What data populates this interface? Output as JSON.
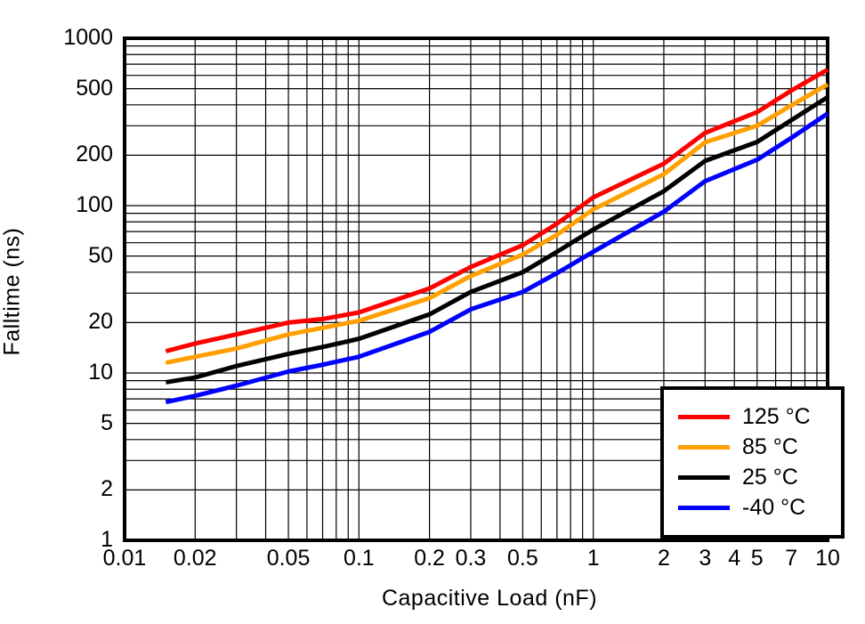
{
  "chart_data": {
    "type": "line",
    "title": "",
    "xlabel": "Capacitive Load (nF)",
    "ylabel": "Falltime (ns)",
    "x_scale": "log",
    "y_scale": "log",
    "xlim": [
      0.01,
      10
    ],
    "ylim": [
      1,
      1000
    ],
    "grid": "minor log gridlines on, both axes, black",
    "legend_position": "lower right",
    "x_ticks": [
      {
        "value": 0.01,
        "label": "0.01"
      },
      {
        "value": 0.02,
        "label": "0.02"
      },
      {
        "value": 0.05,
        "label": "0.05"
      },
      {
        "value": 0.1,
        "label": "0.1"
      },
      {
        "value": 0.2,
        "label": "0.2"
      },
      {
        "value": 0.3,
        "label": "0.3"
      },
      {
        "value": 0.5,
        "label": "0.5"
      },
      {
        "value": 1,
        "label": "1"
      },
      {
        "value": 2,
        "label": "2"
      },
      {
        "value": 3,
        "label": "3"
      },
      {
        "value": 4,
        "label": "4"
      },
      {
        "value": 5,
        "label": "5"
      },
      {
        "value": 7,
        "label": "7"
      },
      {
        "value": 10,
        "label": "10"
      }
    ],
    "y_ticks": [
      {
        "value": 1000,
        "label": "1000"
      },
      {
        "value": 500,
        "label": "500"
      },
      {
        "value": 200,
        "label": "200"
      },
      {
        "value": 100,
        "label": "100"
      },
      {
        "value": 50,
        "label": "50"
      },
      {
        "value": 20,
        "label": "20"
      },
      {
        "value": 10,
        "label": "10"
      },
      {
        "value": 5,
        "label": "5"
      },
      {
        "value": 2,
        "label": "2"
      },
      {
        "value": 1,
        "label": "1"
      }
    ],
    "x": [
      0.015,
      0.02,
      0.03,
      0.05,
      0.07,
      0.1,
      0.2,
      0.3,
      0.5,
      0.7,
      1,
      2,
      3,
      5,
      7,
      10
    ],
    "series": [
      {
        "name": "125 °C",
        "color": "#ff0000",
        "values": [
          13.5,
          15,
          17,
          20,
          21,
          23,
          32,
          43,
          58,
          78,
          112,
          178,
          272,
          362,
          487,
          650
        ]
      },
      {
        "name": "85 °C",
        "color": "#ffa000",
        "values": [
          11.5,
          12.5,
          14,
          17,
          18.6,
          20.5,
          28,
          38,
          51,
          67,
          95,
          154,
          239,
          300,
          397,
          530
        ]
      },
      {
        "name": "25 °C",
        "color": "#000000",
        "values": [
          8.8,
          9.4,
          11,
          13,
          14.3,
          16,
          22.4,
          30.5,
          40,
          53,
          72,
          122,
          185,
          240,
          324,
          445
        ]
      },
      {
        "name": "-40 °C",
        "color": "#0000ff",
        "values": [
          6.7,
          7.3,
          8.4,
          10.2,
          11.2,
          12.5,
          17.6,
          24,
          30.5,
          39.5,
          53,
          92,
          140,
          188,
          254,
          355
        ]
      }
    ]
  }
}
